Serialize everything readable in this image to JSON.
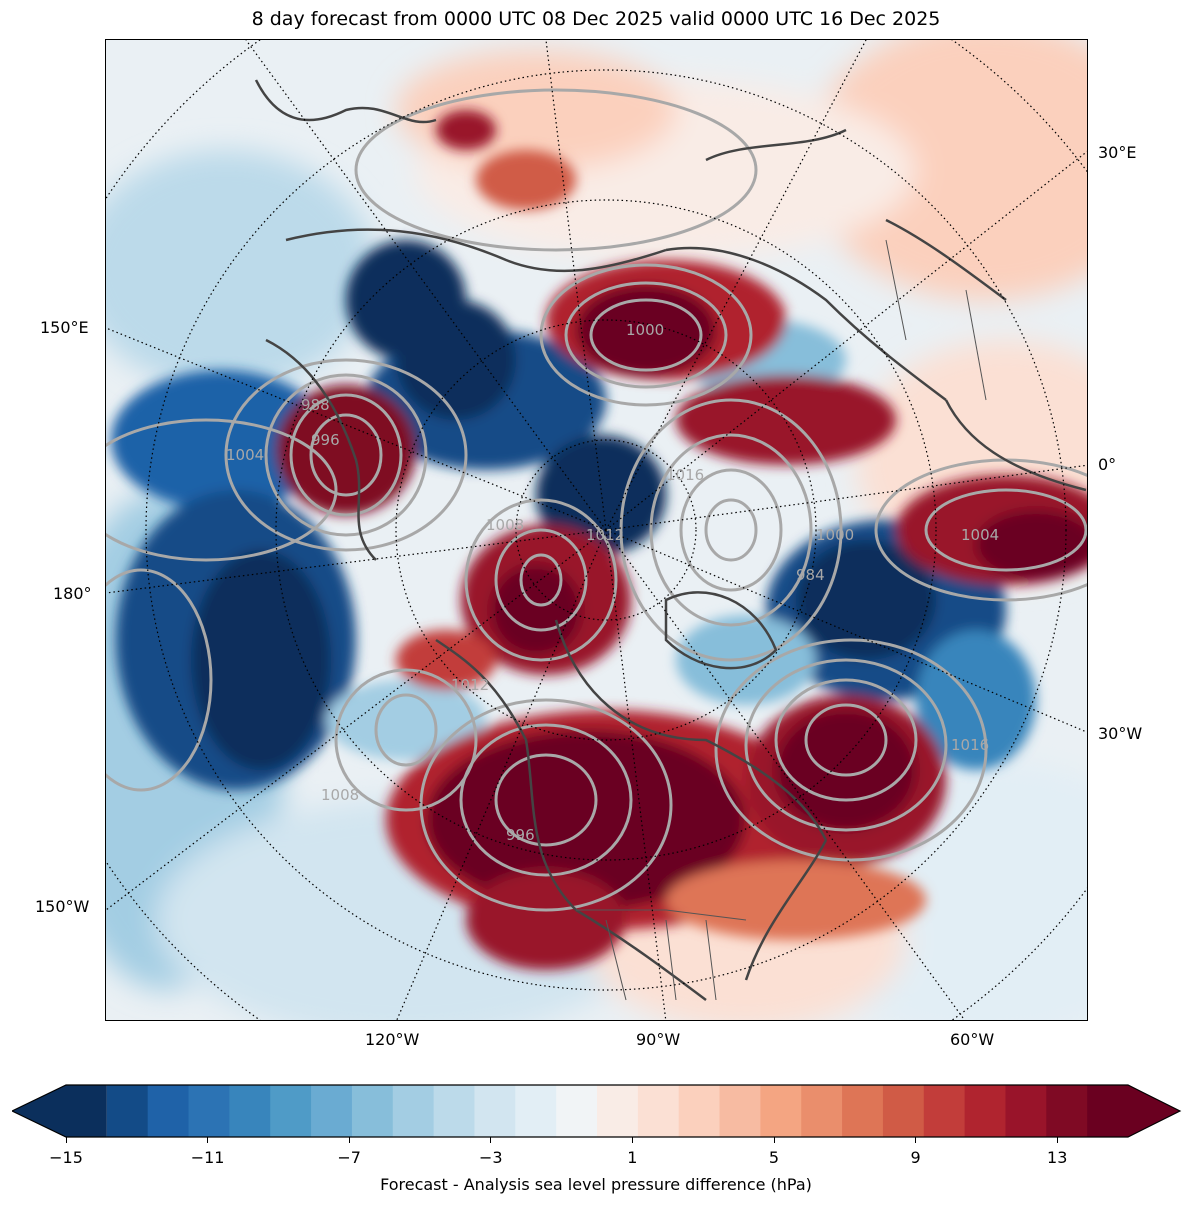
{
  "title": "8 day forecast from 0000 UTC 08 Dec 2025 valid 0000 UTC 16 Dec 2025",
  "map": {
    "projection": "north-polar-stereographic",
    "longitude_labels": [
      "30°E",
      "0°",
      "30°W",
      "150°E",
      "180°",
      "150°W",
      "120°W",
      "90°W",
      "60°W"
    ],
    "contour_labels": [
      "1000",
      "1008",
      "1012",
      "988",
      "996",
      "1004",
      "1016",
      "984",
      "1008",
      "996",
      "1016",
      "1000",
      "1004",
      "1012"
    ],
    "fill_field": "Forecast - Analysis sea level pressure difference",
    "contour_color": "#a8a8a8",
    "coast_color": "#444444"
  },
  "colorbar": {
    "label": "Forecast - Analysis sea level pressure difference (hPa)",
    "ticks": [
      "−15",
      "−11",
      "−7",
      "−3",
      "1",
      "5",
      "9",
      "13"
    ],
    "min": -15,
    "max": 15,
    "step": 1,
    "extend": "both",
    "colormap": "RdBu_r",
    "colors": [
      "#0b2f5c",
      "#134b87",
      "#1f62a8",
      "#2c73b4",
      "#3885bc",
      "#4f9bc7",
      "#6aabd2",
      "#87beda",
      "#a3cde3",
      "#bcdaea",
      "#d2e5f0",
      "#e2eef5",
      "#f1f4f6",
      "#f9ece6",
      "#fbe0d4",
      "#fbd0bd",
      "#f7bba2",
      "#f4a582",
      "#ea8e6c",
      "#de7556",
      "#d05b46",
      "#c23d3a",
      "#b0242f",
      "#99142a",
      "#7f0a24",
      "#6a0020"
    ]
  }
}
